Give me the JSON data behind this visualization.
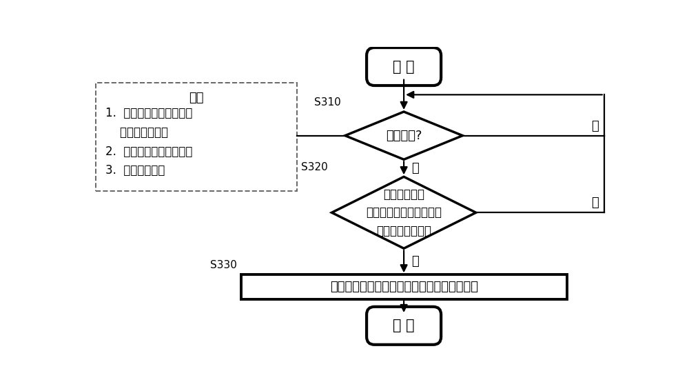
{
  "bg_color": "#ffffff",
  "start_text": "开 始",
  "end_text": "结 束",
  "diamond1_text": "满足条件?",
  "diamond1_label": "S310",
  "diamond2_line1": "当前转向角与",
  "diamond2_line2": "储存于偏移量记忆块中的",
  "diamond2_line3": "转向角是否一致？",
  "diamond2_label": "S320",
  "rect_text": "使用当前的转向角偏移量来更新偏移量记忆块",
  "rect_label": "S330",
  "condition_title": "条件",
  "condition_line1": "1.  一定时间内两侧轮速的",
  "condition_line2": "    差值是否恒定？",
  "condition_line3": "2.  偏航角速度是否为０？",
  "condition_line4": "3.  是否为直行？",
  "yes_label": "是",
  "no_label": "否",
  "shape_lw": 2.5,
  "arrow_lw": 1.6,
  "line_lw": 1.6,
  "cond_lw": 1.4
}
